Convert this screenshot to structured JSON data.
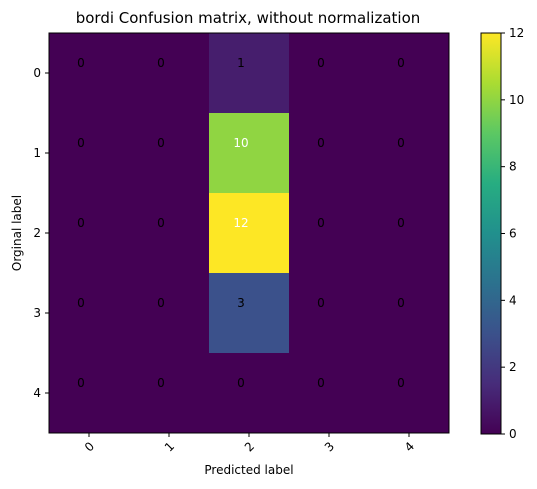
{
  "chart_data": {
    "type": "heatmap",
    "title": "bordi Confusion matrix, without normalization",
    "xlabel": "Predicted label",
    "ylabel": "Orginal label",
    "x_categories": [
      "0",
      "1",
      "2",
      "3",
      "4"
    ],
    "y_categories": [
      "0",
      "1",
      "2",
      "3",
      "4"
    ],
    "values": [
      [
        0,
        0,
        1,
        0,
        0
      ],
      [
        0,
        0,
        10,
        0,
        0
      ],
      [
        0,
        0,
        12,
        0,
        0
      ],
      [
        0,
        0,
        3,
        0,
        0
      ],
      [
        0,
        0,
        0,
        0,
        0
      ]
    ],
    "colormap": "viridis",
    "colorbar": {
      "min": 0,
      "max": 12,
      "ticks": [
        0,
        2,
        4,
        6,
        8,
        10,
        12
      ]
    },
    "x_tick_rotation": 45,
    "text_colors": {
      "dark": "#000000",
      "light": "#ffffff"
    },
    "grid": false
  }
}
